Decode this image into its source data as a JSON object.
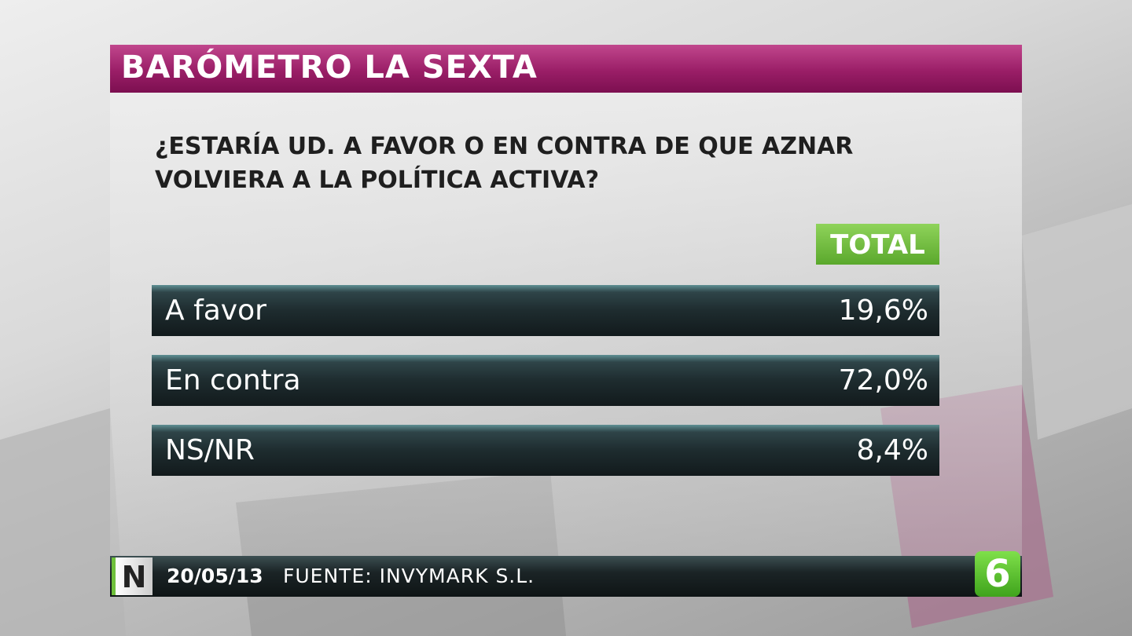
{
  "header": {
    "title": "BARÓMETRO LA SEXTA"
  },
  "question": "¿ESTARÍA UD. A FAVOR O EN CONTRA DE QUE AZNAR VOLVIERA A LA POLÍTICA ACTIVA?",
  "table": {
    "column_header": "TOTAL",
    "rows": [
      [
        "A favor",
        "19,6%"
      ],
      [
        "En contra",
        "72,0%"
      ],
      [
        "NS/NR",
        "8,4%"
      ]
    ]
  },
  "footer": {
    "badge": "N",
    "date": "20/05/13",
    "source": "FUENTE: INVYMARK S.L.",
    "logo": "6"
  }
}
